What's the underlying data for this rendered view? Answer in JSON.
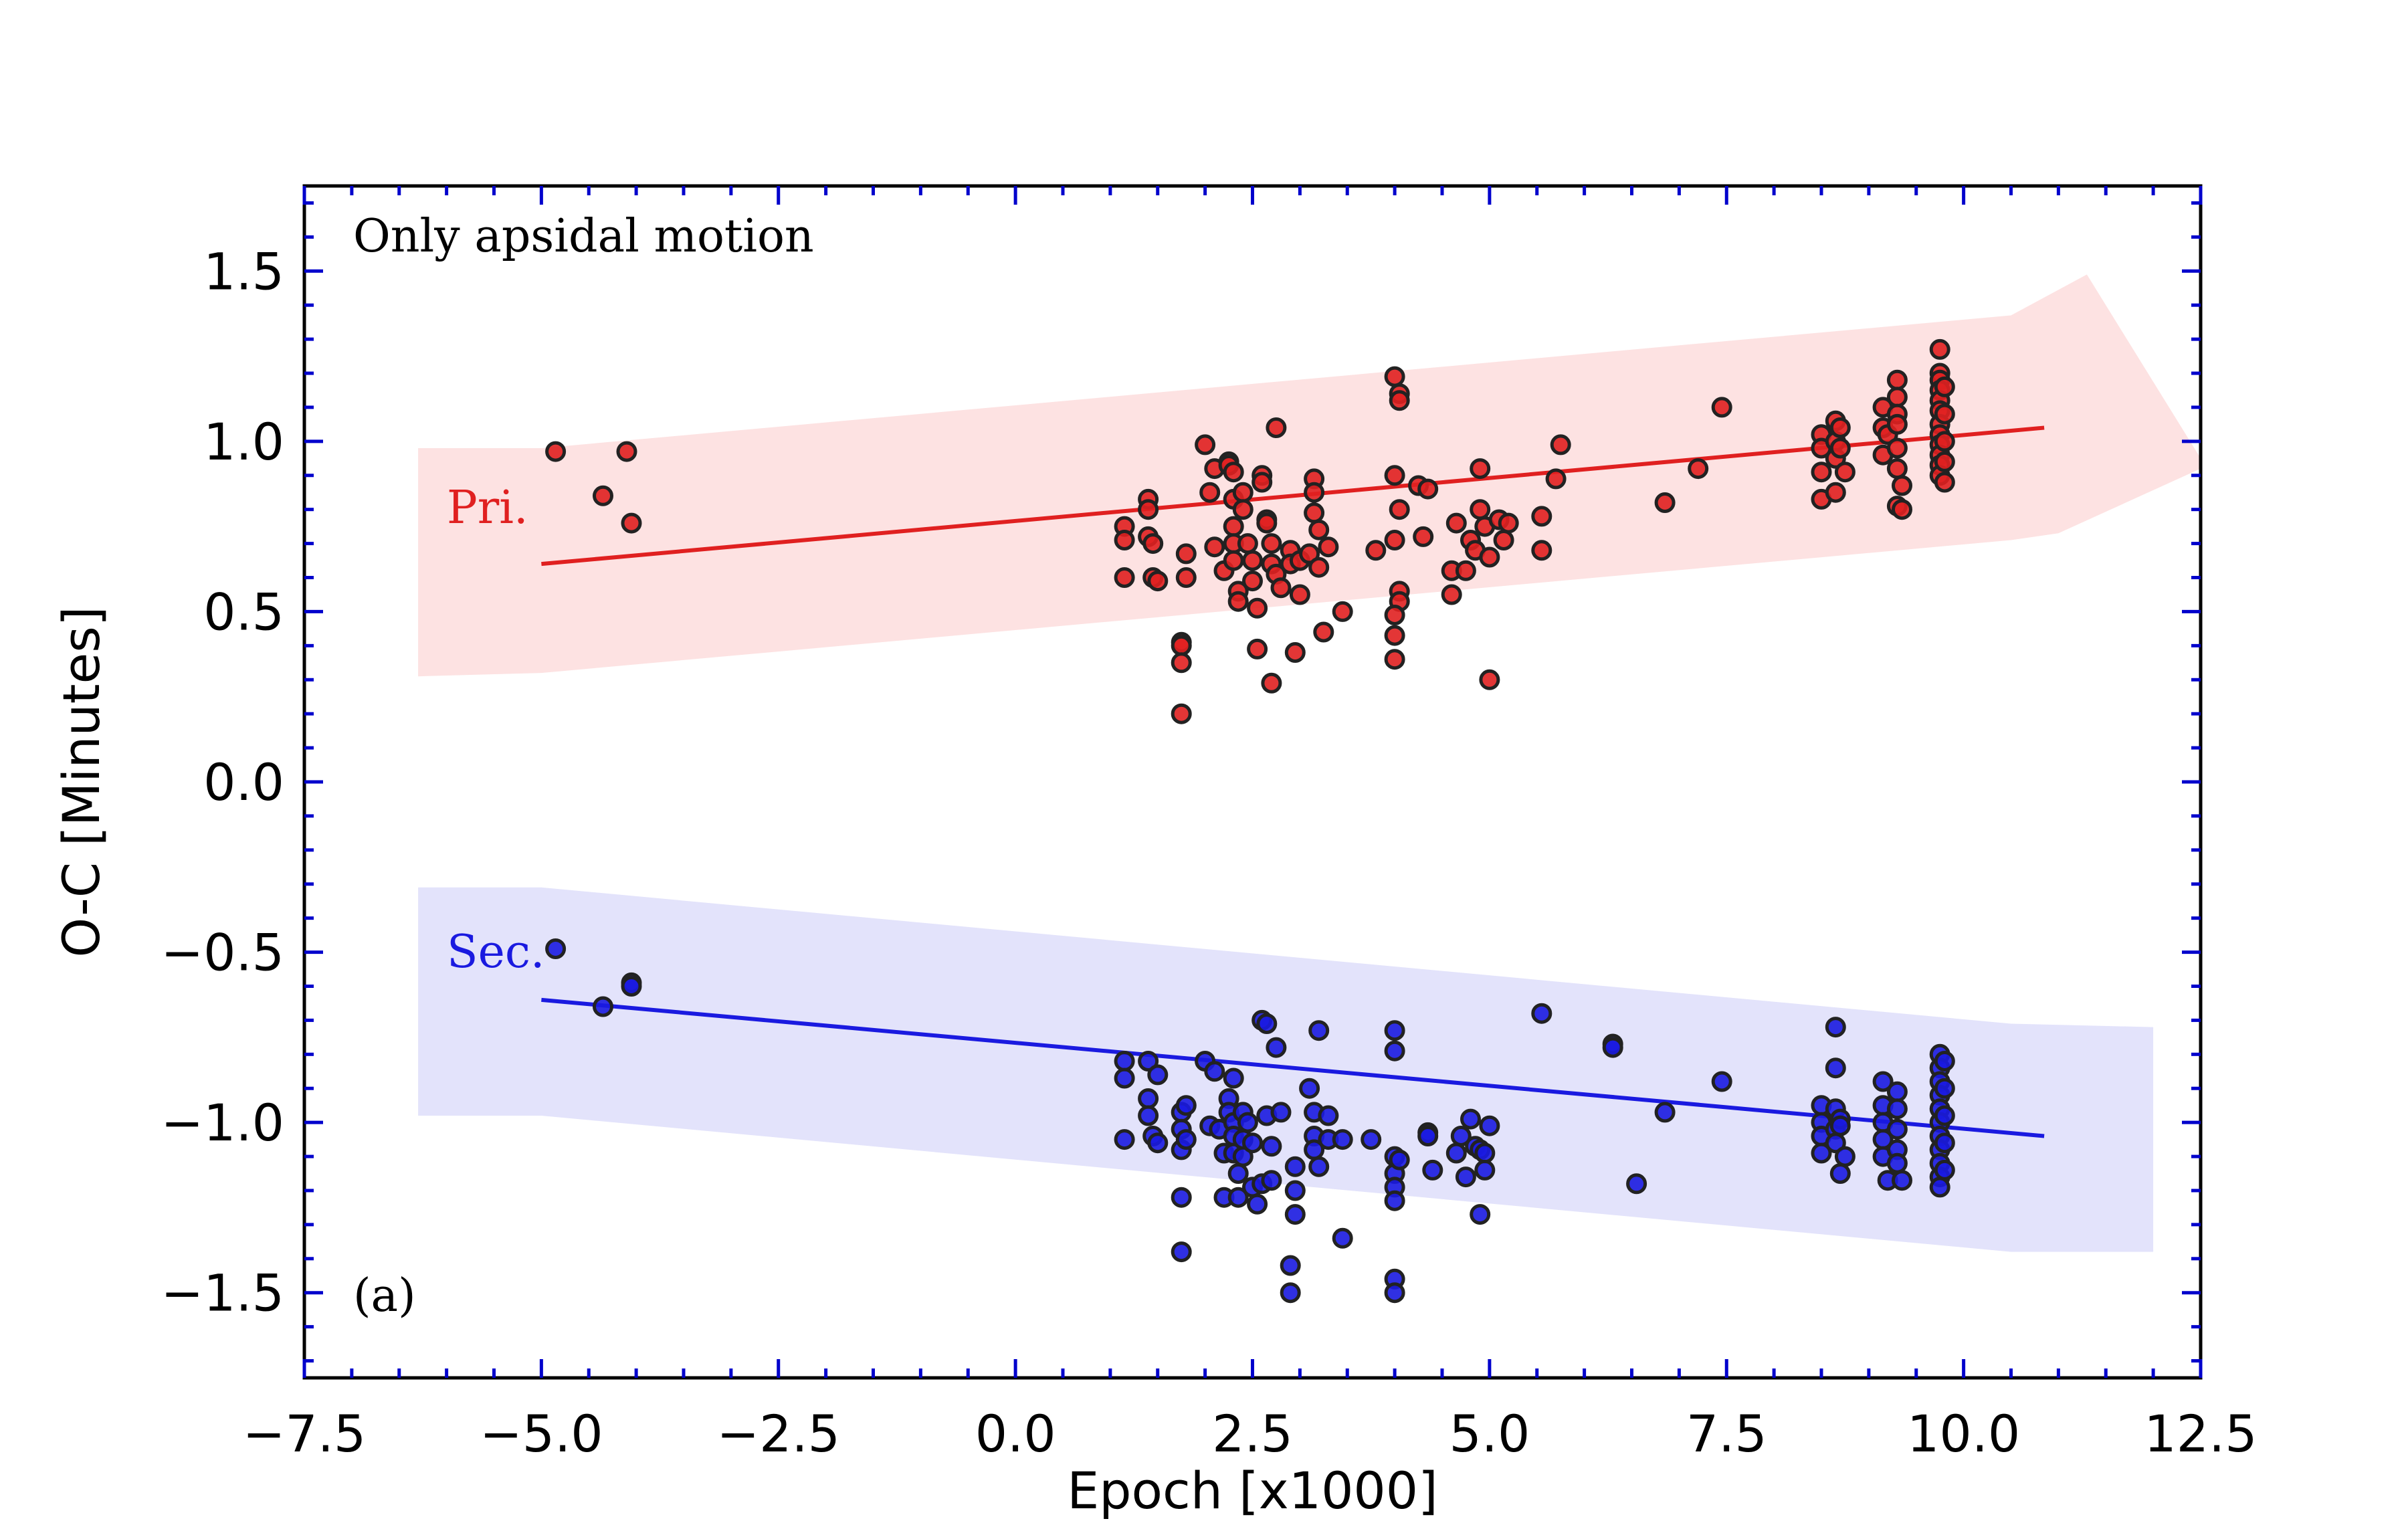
{
  "chart_data": {
    "type": "scatter",
    "title": "",
    "xlabel": "Epoch [x1000]",
    "ylabel": "O-C [Minutes]",
    "xlim": [
      -7.5,
      12.5
    ],
    "ylim": [
      -1.75,
      1.75
    ],
    "x_ticks": [
      "−7.5",
      "−5.0",
      "−2.5",
      "0.0",
      "2.5",
      "5.0",
      "7.5",
      "10.0",
      "12.5"
    ],
    "x_tick_values": [
      -7.5,
      -5.0,
      -2.5,
      0.0,
      2.5,
      5.0,
      7.5,
      10.0,
      12.5
    ],
    "y_ticks": [
      "−1.5",
      "−1.0",
      "−0.5",
      "0.0",
      "0.5",
      "1.0",
      "1.5"
    ],
    "y_tick_values": [
      -1.5,
      -1.0,
      -0.5,
      0.0,
      0.5,
      1.0,
      1.5
    ],
    "grid": false,
    "annotations": {
      "top_left": "Only apsidal motion",
      "bottom_left": "(a)",
      "primary_label": "Pri.",
      "secondary_label": "Sec."
    },
    "colors": {
      "axis_ticks": "#0000cc",
      "primary": "#e02020",
      "primary_band": "#fde2e2",
      "secondary": "#1a1ae0",
      "secondary_band": "#e3e3fb"
    },
    "series": [
      {
        "name": "Pri.",
        "fit_line": {
          "x": [
            -5.0,
            10.85
          ],
          "y": [
            0.64,
            1.04
          ]
        },
        "band": {
          "upper": [
            [
              -6.3,
              0.98
            ],
            [
              -5.0,
              0.98
            ],
            [
              10.5,
              1.37
            ],
            [
              11.3,
              1.49
            ],
            [
              12.5,
              0.95
            ]
          ],
          "lower": [
            [
              12.5,
              0.92
            ],
            [
              11.0,
              0.73
            ],
            [
              10.5,
              0.71
            ],
            [
              -5.0,
              0.32
            ],
            [
              -6.3,
              0.31
            ]
          ]
        },
        "points": [
          [
            -4.85,
            0.97
          ],
          [
            -4.35,
            0.84
          ],
          [
            -4.05,
            0.76
          ],
          [
            -4.1,
            0.97
          ],
          [
            1.15,
            0.75
          ],
          [
            1.15,
            0.71
          ],
          [
            1.15,
            0.6
          ],
          [
            1.4,
            0.83
          ],
          [
            1.4,
            0.8
          ],
          [
            1.4,
            0.72
          ],
          [
            1.45,
            0.7
          ],
          [
            1.45,
            0.6
          ],
          [
            1.5,
            0.59
          ],
          [
            1.75,
            0.41
          ],
          [
            1.75,
            0.4
          ],
          [
            1.75,
            0.35
          ],
          [
            1.75,
            0.2
          ],
          [
            1.8,
            0.6
          ],
          [
            1.8,
            0.67
          ],
          [
            2.0,
            0.99
          ],
          [
            2.05,
            0.85
          ],
          [
            2.1,
            0.92
          ],
          [
            2.1,
            0.69
          ],
          [
            2.2,
            0.62
          ],
          [
            2.25,
            0.94
          ],
          [
            2.25,
            0.93
          ],
          [
            2.3,
            0.91
          ],
          [
            2.3,
            0.83
          ],
          [
            2.3,
            0.75
          ],
          [
            2.3,
            0.7
          ],
          [
            2.3,
            0.65
          ],
          [
            2.35,
            0.56
          ],
          [
            2.35,
            0.53
          ],
          [
            2.4,
            0.85
          ],
          [
            2.4,
            0.8
          ],
          [
            2.45,
            0.7
          ],
          [
            2.5,
            0.65
          ],
          [
            2.5,
            0.59
          ],
          [
            2.55,
            0.39
          ],
          [
            2.55,
            0.51
          ],
          [
            2.6,
            0.9
          ],
          [
            2.6,
            0.88
          ],
          [
            2.65,
            0.77
          ],
          [
            2.65,
            0.76
          ],
          [
            2.7,
            0.7
          ],
          [
            2.7,
            0.64
          ],
          [
            2.7,
            0.29
          ],
          [
            2.75,
            1.04
          ],
          [
            2.75,
            0.61
          ],
          [
            2.8,
            0.57
          ],
          [
            2.9,
            0.68
          ],
          [
            2.9,
            0.64
          ],
          [
            2.95,
            0.38
          ],
          [
            3.0,
            0.65
          ],
          [
            3.0,
            0.55
          ],
          [
            3.1,
            0.67
          ],
          [
            3.15,
            0.89
          ],
          [
            3.15,
            0.85
          ],
          [
            3.15,
            0.79
          ],
          [
            3.2,
            0.74
          ],
          [
            3.2,
            0.63
          ],
          [
            3.25,
            0.44
          ],
          [
            3.3,
            0.69
          ],
          [
            3.45,
            0.5
          ],
          [
            3.8,
            0.68
          ],
          [
            4.0,
            1.19
          ],
          [
            4.05,
            1.14
          ],
          [
            4.05,
            1.12
          ],
          [
            4.0,
            0.9
          ],
          [
            4.05,
            0.8
          ],
          [
            4.0,
            0.71
          ],
          [
            4.05,
            0.56
          ],
          [
            4.05,
            0.53
          ],
          [
            4.0,
            0.49
          ],
          [
            4.0,
            0.43
          ],
          [
            4.0,
            0.36
          ],
          [
            4.25,
            0.87
          ],
          [
            4.35,
            0.86
          ],
          [
            4.3,
            0.72
          ],
          [
            4.6,
            0.55
          ],
          [
            4.6,
            0.62
          ],
          [
            4.65,
            0.76
          ],
          [
            4.75,
            0.62
          ],
          [
            4.8,
            0.71
          ],
          [
            4.85,
            0.68
          ],
          [
            4.9,
            0.92
          ],
          [
            4.9,
            0.8
          ],
          [
            4.95,
            0.75
          ],
          [
            5.0,
            0.66
          ],
          [
            5.0,
            0.3
          ],
          [
            5.1,
            0.77
          ],
          [
            5.15,
            0.71
          ],
          [
            5.2,
            0.76
          ],
          [
            5.55,
            0.78
          ],
          [
            5.55,
            0.68
          ],
          [
            5.75,
            0.99
          ],
          [
            5.7,
            0.89
          ],
          [
            6.85,
            0.82
          ],
          [
            7.2,
            0.92
          ],
          [
            7.45,
            1.1
          ],
          [
            8.5,
            1.02
          ],
          [
            8.5,
            0.98
          ],
          [
            8.5,
            0.91
          ],
          [
            8.5,
            0.83
          ],
          [
            8.65,
            1.06
          ],
          [
            8.65,
            1.0
          ],
          [
            8.65,
            0.95
          ],
          [
            8.65,
            0.85
          ],
          [
            8.7,
            1.04
          ],
          [
            8.7,
            0.98
          ],
          [
            8.75,
            0.91
          ],
          [
            9.15,
            1.1
          ],
          [
            9.15,
            1.04
          ],
          [
            9.15,
            0.96
          ],
          [
            9.2,
            1.02
          ],
          [
            9.3,
            1.18
          ],
          [
            9.3,
            1.13
          ],
          [
            9.3,
            1.08
          ],
          [
            9.3,
            1.05
          ],
          [
            9.3,
            0.98
          ],
          [
            9.3,
            0.92
          ],
          [
            9.3,
            0.81
          ],
          [
            9.35,
            0.8
          ],
          [
            9.35,
            0.87
          ],
          [
            9.75,
            1.27
          ],
          [
            9.75,
            1.2
          ],
          [
            9.75,
            1.18
          ],
          [
            9.75,
            1.15
          ],
          [
            9.75,
            1.12
          ],
          [
            9.75,
            1.09
          ],
          [
            9.75,
            1.05
          ],
          [
            9.75,
            1.02
          ],
          [
            9.75,
            0.99
          ],
          [
            9.75,
            0.96
          ],
          [
            9.75,
            0.93
          ],
          [
            9.75,
            0.9
          ],
          [
            9.8,
            1.16
          ],
          [
            9.8,
            1.08
          ],
          [
            9.8,
            1.0
          ],
          [
            9.8,
            0.94
          ],
          [
            9.8,
            0.88
          ]
        ]
      },
      {
        "name": "Sec.",
        "fit_line": {
          "x": [
            -5.0,
            10.85
          ],
          "y": [
            -0.64,
            -1.04
          ]
        },
        "band": {
          "upper": [
            [
              -6.3,
              -0.31
            ],
            [
              -5.0,
              -0.31
            ],
            [
              10.5,
              -0.71
            ],
            [
              12.0,
              -0.72
            ]
          ],
          "lower": [
            [
              12.0,
              -1.38
            ],
            [
              10.5,
              -1.38
            ],
            [
              -5.0,
              -0.98
            ],
            [
              -6.3,
              -0.98
            ]
          ]
        },
        "points": [
          [
            -4.85,
            -0.49
          ],
          [
            -4.35,
            -0.66
          ],
          [
            -4.05,
            -0.59
          ],
          [
            -4.05,
            -0.6
          ],
          [
            1.15,
            -0.82
          ],
          [
            1.15,
            -0.87
          ],
          [
            1.15,
            -1.05
          ],
          [
            1.4,
            -0.82
          ],
          [
            1.4,
            -0.93
          ],
          [
            1.4,
            -0.98
          ],
          [
            1.45,
            -1.04
          ],
          [
            1.5,
            -1.06
          ],
          [
            1.5,
            -0.86
          ],
          [
            1.75,
            -0.97
          ],
          [
            1.75,
            -1.02
          ],
          [
            1.75,
            -1.08
          ],
          [
            1.75,
            -1.22
          ],
          [
            1.75,
            -1.38
          ],
          [
            1.8,
            -0.95
          ],
          [
            1.8,
            -1.05
          ],
          [
            2.0,
            -0.82
          ],
          [
            2.05,
            -1.01
          ],
          [
            2.1,
            -0.85
          ],
          [
            2.15,
            -1.02
          ],
          [
            2.2,
            -1.09
          ],
          [
            2.2,
            -1.22
          ],
          [
            2.25,
            -0.93
          ],
          [
            2.25,
            -0.97
          ],
          [
            2.3,
            -0.87
          ],
          [
            2.3,
            -1.0
          ],
          [
            2.3,
            -1.04
          ],
          [
            2.3,
            -1.09
          ],
          [
            2.35,
            -1.15
          ],
          [
            2.35,
            -1.22
          ],
          [
            2.4,
            -0.97
          ],
          [
            2.4,
            -1.05
          ],
          [
            2.4,
            -1.1
          ],
          [
            2.45,
            -1.0
          ],
          [
            2.5,
            -1.19
          ],
          [
            2.5,
            -1.06
          ],
          [
            2.55,
            -1.24
          ],
          [
            2.6,
            -0.7
          ],
          [
            2.6,
            -1.18
          ],
          [
            2.65,
            -0.71
          ],
          [
            2.65,
            -0.98
          ],
          [
            2.7,
            -1.07
          ],
          [
            2.7,
            -1.17
          ],
          [
            2.75,
            -0.78
          ],
          [
            2.8,
            -0.97
          ],
          [
            2.9,
            -1.42
          ],
          [
            2.9,
            -1.5
          ],
          [
            2.95,
            -1.13
          ],
          [
            2.95,
            -1.2
          ],
          [
            2.95,
            -1.27
          ],
          [
            3.1,
            -0.9
          ],
          [
            3.15,
            -0.97
          ],
          [
            3.15,
            -1.04
          ],
          [
            3.15,
            -1.08
          ],
          [
            3.2,
            -0.73
          ],
          [
            3.2,
            -1.13
          ],
          [
            3.3,
            -0.98
          ],
          [
            3.3,
            -1.05
          ],
          [
            3.45,
            -1.05
          ],
          [
            3.45,
            -1.34
          ],
          [
            3.75,
            -1.05
          ],
          [
            4.0,
            -0.73
          ],
          [
            4.0,
            -0.79
          ],
          [
            4.0,
            -1.1
          ],
          [
            4.0,
            -1.15
          ],
          [
            4.0,
            -1.19
          ],
          [
            4.0,
            -1.23
          ],
          [
            4.0,
            -1.46
          ],
          [
            4.0,
            -1.5
          ],
          [
            4.05,
            -1.11
          ],
          [
            4.35,
            -1.03
          ],
          [
            4.35,
            -1.04
          ],
          [
            4.4,
            -1.14
          ],
          [
            4.65,
            -1.09
          ],
          [
            4.7,
            -1.04
          ],
          [
            4.75,
            -1.16
          ],
          [
            4.8,
            -0.99
          ],
          [
            4.85,
            -1.07
          ],
          [
            4.9,
            -1.08
          ],
          [
            4.9,
            -1.27
          ],
          [
            4.95,
            -1.09
          ],
          [
            4.95,
            -1.14
          ],
          [
            5.0,
            -1.01
          ],
          [
            5.55,
            -0.68
          ],
          [
            6.3,
            -0.77
          ],
          [
            6.3,
            -0.78
          ],
          [
            6.55,
            -1.18
          ],
          [
            6.85,
            -0.97
          ],
          [
            7.45,
            -0.88
          ],
          [
            8.5,
            -0.95
          ],
          [
            8.5,
            -1.0
          ],
          [
            8.5,
            -1.04
          ],
          [
            8.5,
            -1.09
          ],
          [
            8.65,
            -0.72
          ],
          [
            8.65,
            -0.84
          ],
          [
            8.65,
            -0.96
          ],
          [
            8.65,
            -1.02
          ],
          [
            8.65,
            -1.06
          ],
          [
            8.7,
            -0.99
          ],
          [
            8.7,
            -1.01
          ],
          [
            8.75,
            -1.1
          ],
          [
            8.7,
            -1.15
          ],
          [
            9.15,
            -0.88
          ],
          [
            9.15,
            -0.95
          ],
          [
            9.15,
            -1.0
          ],
          [
            9.15,
            -1.05
          ],
          [
            9.15,
            -1.1
          ],
          [
            9.2,
            -1.17
          ],
          [
            9.3,
            -0.91
          ],
          [
            9.3,
            -0.96
          ],
          [
            9.3,
            -1.02
          ],
          [
            9.3,
            -1.08
          ],
          [
            9.3,
            -1.12
          ],
          [
            9.35,
            -1.17
          ],
          [
            9.75,
            -0.8
          ],
          [
            9.75,
            -0.84
          ],
          [
            9.75,
            -0.88
          ],
          [
            9.75,
            -0.92
          ],
          [
            9.75,
            -0.96
          ],
          [
            9.75,
            -1.0
          ],
          [
            9.75,
            -1.04
          ],
          [
            9.75,
            -1.08
          ],
          [
            9.75,
            -1.12
          ],
          [
            9.75,
            -1.16
          ],
          [
            9.75,
            -1.19
          ],
          [
            9.8,
            -0.82
          ],
          [
            9.8,
            -0.9
          ],
          [
            9.8,
            -0.98
          ],
          [
            9.8,
            -1.06
          ],
          [
            9.8,
            -1.14
          ]
        ]
      }
    ]
  }
}
